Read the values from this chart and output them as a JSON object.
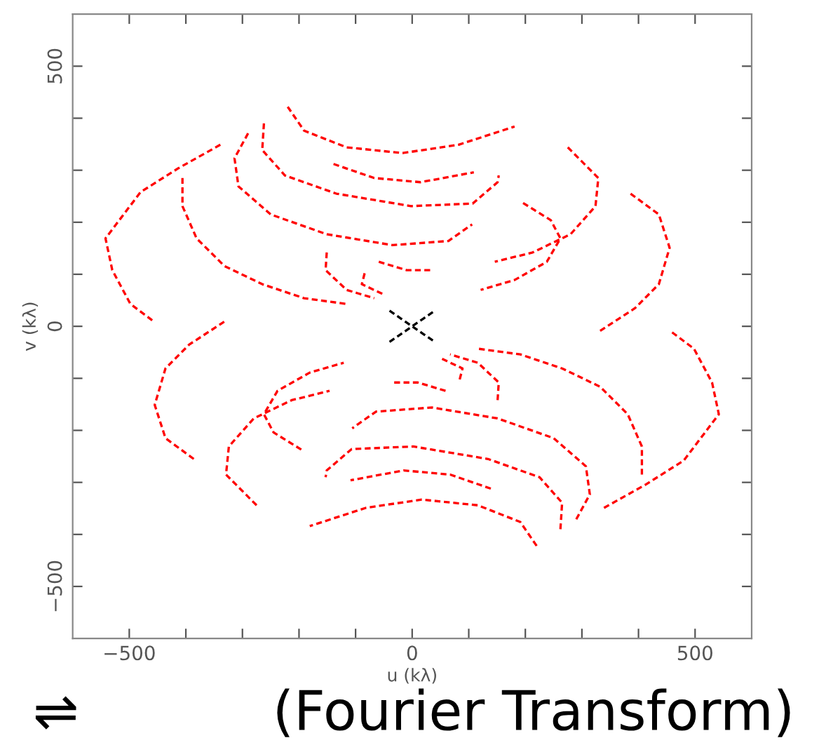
{
  "chart_data": {
    "type": "line",
    "xlabel": "u (kλ)",
    "ylabel": "v (kλ)",
    "annotations": [
      "⇌",
      "(Fourier Transform)"
    ],
    "xlim": [
      -600,
      600
    ],
    "ylim": [
      -600,
      600
    ],
    "xticks": [
      {
        "value": -500,
        "label": "−500"
      },
      {
        "value": -400,
        "label": null
      },
      {
        "value": -300,
        "label": null
      },
      {
        "value": -200,
        "label": null
      },
      {
        "value": -100,
        "label": null
      },
      0,
      {
        "value": 100,
        "label": null
      },
      {
        "value": 200,
        "label": null
      },
      {
        "value": 300,
        "label": null
      },
      {
        "value": 400,
        "label": null
      },
      500
    ],
    "yticks": [
      {
        "value": -500,
        "label": "−500"
      },
      {
        "value": -400,
        "label": null
      },
      {
        "value": -300,
        "label": null
      },
      {
        "value": -200,
        "label": null
      },
      {
        "value": -100,
        "label": null
      },
      0,
      {
        "value": 100,
        "label": null
      },
      {
        "value": 200,
        "label": null
      },
      {
        "value": 300,
        "label": null
      },
      {
        "value": 400,
        "label": null
      },
      500
    ],
    "grid": false,
    "legend": false,
    "marker": "none",
    "line_style": "dashed",
    "series": [
      {
        "color": "#ff0000",
        "x": [
          -220,
          -191,
          -116,
          -17,
          82,
          181
        ],
        "values": [
          422,
          376,
          344,
          333,
          349,
          384
        ]
      },
      {
        "color": "#ff0000",
        "x": [
          -262,
          -265,
          -225,
          -134,
          -2,
          107,
          151,
          153
        ],
        "values": [
          390,
          339,
          290,
          255,
          231,
          236,
          277,
          290
        ]
      },
      {
        "color": "#ff0000",
        "x": [
          -139,
          -67,
          15,
          109
        ],
        "values": [
          312,
          285,
          277,
          296
        ]
      },
      {
        "color": "#ff0000",
        "x": [
          -290,
          -314,
          -307,
          -250,
          -151,
          -35,
          64,
          106
        ],
        "values": [
          371,
          323,
          269,
          215,
          177,
          156,
          164,
          196
        ]
      },
      {
        "color": "#ff0000",
        "x": [
          -59,
          -10,
          35
        ],
        "values": [
          124,
          108,
          108
        ]
      },
      {
        "color": "#ff0000",
        "x": [
          -84,
          -89,
          -52
        ],
        "values": [
          102,
          81,
          62
        ]
      },
      {
        "color": "#ff0000",
        "x": [
          -151,
          -153,
          -116,
          -67
        ],
        "values": [
          142,
          108,
          70,
          54
        ]
      },
      {
        "color": "#ff0000",
        "x": [
          -339,
          -413,
          -480,
          -542,
          -530,
          -498,
          -455
        ],
        "values": [
          349,
          304,
          258,
          169,
          108,
          43,
          8
        ]
      },
      {
        "color": "#ff0000",
        "x": [
          -406,
          -406,
          -381,
          -332,
          -265,
          -191,
          -116
        ],
        "values": [
          285,
          231,
          169,
          116,
          81,
          54,
          43
        ]
      },
      {
        "color": "#ff0000",
        "x": [
          275,
          329,
          324,
          280,
          213,
          146
        ],
        "values": [
          344,
          285,
          231,
          177,
          142,
          124
        ]
      },
      {
        "color": "#ff0000",
        "x": [
          386,
          436,
          455,
          436,
          394,
          329
        ],
        "values": [
          255,
          215,
          151,
          81,
          35,
          -11
        ]
      },
      {
        "color": "#ff0000",
        "x": [
          196,
          245,
          262,
          238,
          181,
          121
        ],
        "values": [
          237,
          204,
          169,
          124,
          89,
          70
        ]
      },
      {
        "color": "#ff0000",
        "x": [
          220,
          191,
          116,
          17,
          -82,
          -181
        ],
        "values": [
          -422,
          -376,
          -344,
          -333,
          -349,
          -384
        ]
      },
      {
        "color": "#ff0000",
        "x": [
          262,
          265,
          225,
          134,
          2,
          -107,
          -151,
          -153
        ],
        "values": [
          -390,
          -339,
          -290,
          -255,
          -231,
          -236,
          -277,
          -290
        ]
      },
      {
        "color": "#ff0000",
        "x": [
          139,
          67,
          -15,
          -109
        ],
        "values": [
          -312,
          -285,
          -277,
          -296
        ]
      },
      {
        "color": "#ff0000",
        "x": [
          290,
          314,
          307,
          250,
          151,
          35,
          -64,
          -106
        ],
        "values": [
          -371,
          -323,
          -269,
          -215,
          -177,
          -156,
          -164,
          -196
        ]
      },
      {
        "color": "#ff0000",
        "x": [
          59,
          10,
          -35
        ],
        "values": [
          -124,
          -108,
          -108
        ]
      },
      {
        "color": "#ff0000",
        "x": [
          84,
          89,
          52
        ],
        "values": [
          -102,
          -81,
          -62
        ]
      },
      {
        "color": "#ff0000",
        "x": [
          151,
          153,
          116,
          67
        ],
        "values": [
          -142,
          -108,
          -70,
          -54
        ]
      },
      {
        "color": "#ff0000",
        "x": [
          339,
          413,
          480,
          542,
          530,
          498,
          455
        ],
        "values": [
          -349,
          -304,
          -258,
          -169,
          -108,
          -43,
          -8
        ]
      },
      {
        "color": "#ff0000",
        "x": [
          406,
          406,
          381,
          332,
          265,
          191,
          116
        ],
        "values": [
          -285,
          -231,
          -169,
          -116,
          -81,
          -54,
          -43
        ]
      },
      {
        "color": "#ff0000",
        "x": [
          -275,
          -329,
          -324,
          -280,
          -213,
          -146
        ],
        "values": [
          -344,
          -285,
          -231,
          -177,
          -142,
          -124
        ]
      },
      {
        "color": "#ff0000",
        "x": [
          -386,
          -436,
          -455,
          -436,
          -394,
          -329
        ],
        "values": [
          -255,
          -215,
          -151,
          -81,
          -35,
          11
        ]
      },
      {
        "color": "#ff0000",
        "x": [
          -196,
          -245,
          -262,
          -238,
          -181,
          -121
        ],
        "values": [
          -237,
          -204,
          -169,
          -124,
          -89,
          -70
        ]
      },
      {
        "color": "#000000",
        "x": [
          -40,
          -20,
          0,
          20,
          40
        ],
        "values": [
          30,
          15,
          0,
          -15,
          -30
        ]
      },
      {
        "color": "#000000",
        "x": [
          -40,
          -20,
          0,
          20,
          40
        ],
        "values": [
          -30,
          -15,
          0,
          15,
          30
        ]
      }
    ]
  }
}
